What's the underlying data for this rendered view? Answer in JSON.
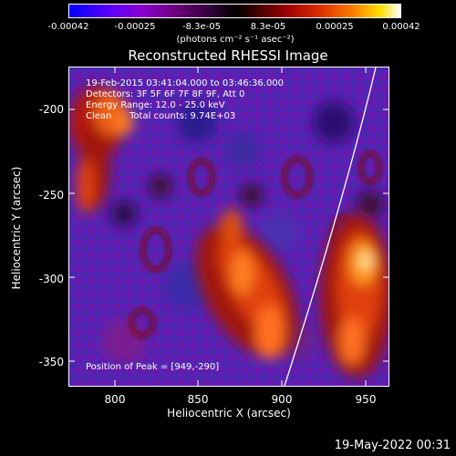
{
  "colorbar": {
    "ticks": [
      "-0.00042",
      "-0.00025",
      "-8.3e-05",
      "8.3e-05",
      "0.00025",
      "0.00042"
    ],
    "units": "(photons cm⁻² s⁻¹ asec⁻²)"
  },
  "image": {
    "title": "Reconstructed RHESSI Image",
    "time_range": "19-Feb-2015 03:41:04.000 to 03:46:36.000",
    "detectors": "Detectors: 3F 5F 6F 7F 8F 9F, Att 0",
    "energy_range": "Energy Range: 12.0 - 25.0 keV",
    "clean_label": "Clean",
    "total_counts": "Total counts: 9.74E+03",
    "peak_position": "Position of Peak = [949,-290]",
    "x_ticks": [
      "800",
      "850",
      "900",
      "950"
    ],
    "y_ticks": [
      "-200",
      "-250",
      "-300",
      "-350"
    ],
    "xlabel": "Heliocentric X (arcsec)",
    "ylabel": "Heliocentric Y (arcsec)"
  },
  "footer": {
    "timestamp": "19-May-2022 00:31"
  }
}
